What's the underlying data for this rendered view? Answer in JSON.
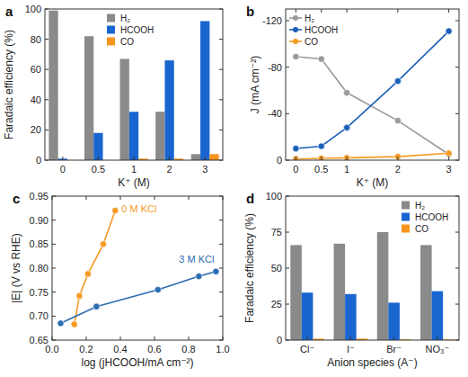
{
  "chart_data": [
    {
      "type": "bar",
      "title": "a",
      "x_label": "K⁺ (M)",
      "y_label": "Faradaic efficiency (%)",
      "categories": [
        "0",
        "0.5",
        "1",
        "2",
        "3"
      ],
      "series": [
        {
          "name": "H₂",
          "color": "#8a8a8a",
          "values": [
            99,
            82,
            67,
            32,
            4
          ]
        },
        {
          "name": "HCOOH",
          "color": "#1a66d0",
          "values": [
            1,
            18,
            32,
            66,
            92
          ]
        },
        {
          "name": "CO",
          "color": "#f7941d",
          "values": [
            0,
            0,
            1,
            1,
            4
          ]
        }
      ],
      "ylim": [
        0,
        100
      ],
      "yticks": [
        0,
        20,
        40,
        60,
        80,
        100
      ],
      "legend": "upper center"
    },
    {
      "type": "line",
      "title": "b",
      "x_label": "K⁺ (M)",
      "y_label": "J (mA cm⁻²)",
      "x": [
        0,
        0.5,
        1,
        2,
        3
      ],
      "series": [
        {
          "name": "H₂",
          "color": "#9a9a9a",
          "marker": "circle",
          "values": [
            -89,
            -87,
            -58,
            -34,
            -5
          ]
        },
        {
          "name": "HCOOH",
          "color": "#1c5fb8",
          "marker": "circle",
          "values": [
            -10,
            -12,
            -28,
            -68,
            -111
          ]
        },
        {
          "name": "CO",
          "color": "#f59a23",
          "marker": "circle",
          "values": [
            -1,
            -1.5,
            -2,
            -3,
            -6
          ]
        }
      ],
      "xlim": [
        -0.2,
        3.2
      ],
      "xticks": [
        0,
        0.5,
        1,
        2,
        3
      ],
      "ylim": [
        0,
        -130
      ],
      "yticks": [
        0,
        -40,
        -80,
        -120
      ],
      "legend": "upper left"
    },
    {
      "type": "scatter",
      "title": "c",
      "x_label": "log (jHCOOH/mA cm⁻²)",
      "y_label": "|E| (V vs RHE)",
      "series": [
        {
          "name": "0 M KCl",
          "color": "#f59a23",
          "marker": "circle",
          "line_style": "solid",
          "x": [
            0.13,
            0.16,
            0.21,
            0.3,
            0.37
          ],
          "values": [
            0.683,
            0.742,
            0.788,
            0.85,
            0.92
          ]
        },
        {
          "name": "3 M KCl",
          "color": "#2a6db0",
          "marker": "circle",
          "line_style": "solid",
          "x": [
            0.05,
            0.26,
            0.62,
            0.86,
            0.96
          ],
          "values": [
            0.685,
            0.72,
            0.755,
            0.783,
            0.793
          ]
        }
      ],
      "xlim": [
        0,
        1.0
      ],
      "xticks": [
        {
          "value": 0,
          "label": "0.0"
        },
        0.2,
        0.4,
        0.6,
        0.8,
        {
          "value": 1.0,
          "label": "1.0"
        }
      ],
      "ylim": [
        0.65,
        0.95
      ],
      "yticks": [
        0.65,
        {
          "value": 0.7,
          "label": "0.70"
        },
        0.75,
        {
          "value": 0.8,
          "label": "0.80"
        },
        0.85,
        {
          "value": 0.9,
          "label": "0.90"
        },
        0.95
      ]
    },
    {
      "type": "bar",
      "title": "d",
      "x_label": "Anion species (A⁻)",
      "y_label": "Faradaic efficiency (%)",
      "categories": [
        "Cl⁻",
        "I⁻",
        "Br⁻",
        "NO₃⁻"
      ],
      "series": [
        {
          "name": "H₂",
          "color": "#8a8a8a",
          "values": [
            66,
            67,
            75,
            66
          ]
        },
        {
          "name": "HCOOH",
          "color": "#1a66d0",
          "values": [
            33,
            32,
            26,
            34
          ]
        },
        {
          "name": "CO",
          "color": "#f7941d",
          "values": [
            1,
            1,
            0.5,
            0.5
          ]
        }
      ],
      "ylim": [
        0,
        100
      ],
      "yticks": [
        0,
        25,
        50,
        75,
        100
      ],
      "legend": "upper right"
    }
  ]
}
